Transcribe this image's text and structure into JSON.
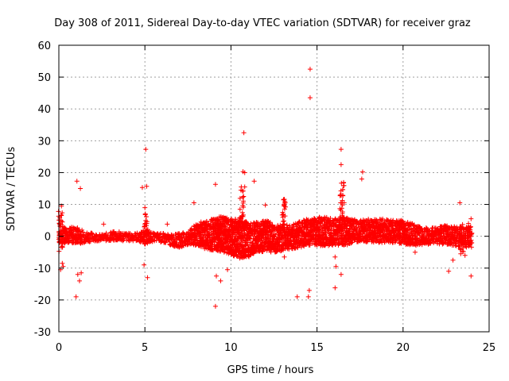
{
  "chart_data": {
    "type": "scatter",
    "title": "Day 308 of 2011, Sidereal Day-to-day VTEC variation (SDTVAR) for receiver graz",
    "xlabel": "GPS time / hours",
    "ylabel": "SDTVAR / TECUs",
    "xlim": [
      0,
      25
    ],
    "ylim": [
      -30,
      60
    ],
    "xticks": [
      0,
      5,
      10,
      15,
      20,
      25
    ],
    "yticks": [
      -30,
      -20,
      -10,
      0,
      10,
      20,
      30,
      40,
      50,
      60
    ],
    "grid": true,
    "marker": "+",
    "color": "#ff0000",
    "band": [
      [
        0.0,
        -2.5,
        3.5
      ],
      [
        0.5,
        -2.0,
        3.0
      ],
      [
        1.0,
        -2.5,
        3.0
      ],
      [
        1.5,
        -2.0,
        1.5
      ],
      [
        2.0,
        -1.5,
        1.0
      ],
      [
        2.5,
        -1.5,
        0.5
      ],
      [
        3.0,
        -1.5,
        1.5
      ],
      [
        3.5,
        -1.5,
        1.5
      ],
      [
        4.0,
        -1.5,
        1.0
      ],
      [
        4.5,
        -1.5,
        1.0
      ],
      [
        5.0,
        -2.5,
        2.0
      ],
      [
        5.5,
        -1.5,
        1.0
      ],
      [
        6.0,
        -2.0,
        1.0
      ],
      [
        6.5,
        -3.0,
        0.5
      ],
      [
        7.0,
        -3.5,
        1.0
      ],
      [
        7.5,
        -3.0,
        1.5
      ],
      [
        8.0,
        -3.0,
        4.0
      ],
      [
        8.5,
        -4.0,
        5.0
      ],
      [
        9.0,
        -4.5,
        5.5
      ],
      [
        9.5,
        -5.0,
        6.5
      ],
      [
        10.0,
        -6.0,
        5.5
      ],
      [
        10.5,
        -7.0,
        6.0
      ],
      [
        11.0,
        -6.5,
        4.0
      ],
      [
        11.5,
        -5.0,
        4.5
      ],
      [
        12.0,
        -5.0,
        5.0
      ],
      [
        12.5,
        -5.0,
        4.0
      ],
      [
        13.0,
        -4.5,
        4.0
      ],
      [
        13.5,
        -4.0,
        3.5
      ],
      [
        14.0,
        -3.5,
        5.0
      ],
      [
        14.5,
        -3.0,
        5.5
      ],
      [
        15.0,
        -3.0,
        6.0
      ],
      [
        15.5,
        -3.0,
        6.0
      ],
      [
        16.0,
        -3.0,
        5.5
      ],
      [
        16.5,
        -3.0,
        6.0
      ],
      [
        17.0,
        -2.5,
        5.5
      ],
      [
        17.5,
        -2.0,
        5.0
      ],
      [
        18.0,
        -2.0,
        5.5
      ],
      [
        18.5,
        -2.0,
        5.5
      ],
      [
        19.0,
        -2.0,
        5.5
      ],
      [
        19.5,
        -2.0,
        5.0
      ],
      [
        20.0,
        -2.5,
        5.0
      ],
      [
        20.5,
        -3.0,
        4.0
      ],
      [
        21.0,
        -3.0,
        3.0
      ],
      [
        21.5,
        -2.5,
        2.5
      ],
      [
        22.0,
        -2.5,
        3.0
      ],
      [
        22.5,
        -2.5,
        3.5
      ],
      [
        23.0,
        -3.0,
        3.0
      ],
      [
        23.5,
        -3.5,
        3.0
      ],
      [
        24.0,
        -3.5,
        3.0
      ]
    ],
    "spikes": [
      [
        10.65,
        2.0,
        14.5
      ],
      [
        13.1,
        3.0,
        12.5
      ],
      [
        16.45,
        4.0,
        17.0
      ],
      [
        9.3,
        -4.0,
        6.5
      ],
      [
        0.1,
        -5.0,
        8.0
      ],
      [
        5.05,
        -3.0,
        8.0
      ],
      [
        23.4,
        -5.0,
        4.0
      ]
    ],
    "outliers": [
      [
        14.6,
        52.5
      ],
      [
        14.6,
        43.5
      ],
      [
        10.75,
        32.5
      ],
      [
        5.05,
        27.3
      ],
      [
        16.4,
        27.3
      ],
      [
        16.4,
        22.5
      ],
      [
        10.7,
        20.3
      ],
      [
        10.8,
        20.0
      ],
      [
        17.65,
        20.2
      ],
      [
        17.6,
        18.0
      ],
      [
        1.05,
        17.3
      ],
      [
        11.35,
        17.3
      ],
      [
        1.25,
        15.0
      ],
      [
        4.85,
        15.3
      ],
      [
        5.1,
        15.7
      ],
      [
        9.1,
        16.3
      ],
      [
        10.6,
        15.5
      ],
      [
        10.8,
        15.5
      ],
      [
        0.15,
        9.5
      ],
      [
        0.05,
        5.8
      ],
      [
        7.85,
        10.5
      ],
      [
        23.3,
        10.5
      ],
      [
        5.0,
        9.0
      ],
      [
        2.6,
        3.8
      ],
      [
        6.3,
        3.8
      ],
      [
        12.0,
        9.8
      ],
      [
        0.2,
        -8.5
      ],
      [
        0.1,
        -10.5
      ],
      [
        0.25,
        -9.5
      ],
      [
        1.1,
        -12.0
      ],
      [
        1.2,
        -14.0
      ],
      [
        1.3,
        -11.5
      ],
      [
        1.0,
        -19.0
      ],
      [
        4.95,
        -9.0
      ],
      [
        5.15,
        -13.0
      ],
      [
        9.15,
        -12.5
      ],
      [
        9.4,
        -14.0
      ],
      [
        9.1,
        -22.0
      ],
      [
        9.8,
        -10.5
      ],
      [
        13.1,
        -6.5
      ],
      [
        13.85,
        -19.0
      ],
      [
        14.55,
        -17.0
      ],
      [
        14.5,
        -19.0
      ],
      [
        16.05,
        -6.5
      ],
      [
        16.1,
        -9.5
      ],
      [
        16.4,
        -12.0
      ],
      [
        16.05,
        -16.2
      ],
      [
        20.7,
        -5.0
      ],
      [
        22.65,
        -11.0
      ],
      [
        22.9,
        -7.5
      ],
      [
        23.35,
        -5.5
      ],
      [
        23.6,
        -6.0
      ],
      [
        23.95,
        5.5
      ],
      [
        23.95,
        -12.5
      ],
      [
        23.8,
        4.0
      ]
    ]
  }
}
